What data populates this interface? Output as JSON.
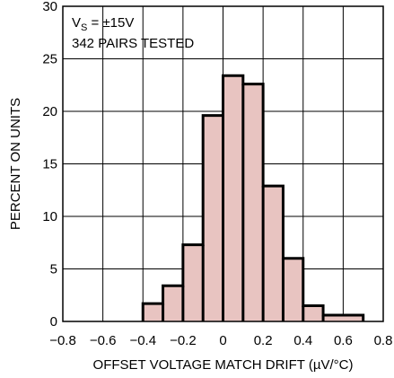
{
  "chart_data": {
    "type": "bar",
    "subtype": "histogram",
    "annotations": {
      "line1_main": "V",
      "line1_sub": "S",
      "line1_rest": " = ±15V",
      "line2": "342 PAIRS TESTED"
    },
    "xlabel": "OFFSET VOLTAGE MATCH DRIFT (µV/°C)",
    "ylabel": "PERCENT ON UNITS",
    "xlim": [
      -0.8,
      0.8
    ],
    "ylim": [
      0,
      30
    ],
    "x_ticks": [
      "−0.8",
      "−0.6",
      "−0.4",
      "−0.2",
      "0",
      "0.2",
      "0.4",
      "0.6",
      "0.8"
    ],
    "y_ticks": [
      "0",
      "5",
      "10",
      "15",
      "20",
      "25",
      "30"
    ],
    "grid": true,
    "bins": [
      {
        "x0": -0.4,
        "x1": -0.3,
        "value": 1.7
      },
      {
        "x0": -0.3,
        "x1": -0.2,
        "value": 3.4
      },
      {
        "x0": -0.2,
        "x1": -0.1,
        "value": 7.3
      },
      {
        "x0": -0.1,
        "x1": 0.0,
        "value": 19.6
      },
      {
        "x0": 0.0,
        "x1": 0.1,
        "value": 23.4
      },
      {
        "x0": 0.1,
        "x1": 0.2,
        "value": 22.6
      },
      {
        "x0": 0.2,
        "x1": 0.3,
        "value": 12.9
      },
      {
        "x0": 0.3,
        "x1": 0.4,
        "value": 6.0
      },
      {
        "x0": 0.4,
        "x1": 0.5,
        "value": 1.5
      },
      {
        "x0": 0.5,
        "x1": 0.7,
        "value": 0.6
      }
    ],
    "colors": {
      "fill": "#e8c4c1",
      "outline": "#000000",
      "grid": "#000000"
    }
  }
}
